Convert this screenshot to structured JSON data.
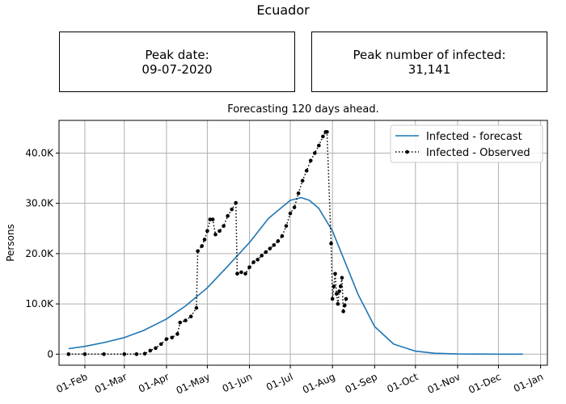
{
  "title": "Ecuador",
  "peak_date": {
    "label": "Peak date:",
    "value": "09-07-2020"
  },
  "peak_infected": {
    "label": "Peak number of infected:",
    "value": "31,141"
  },
  "subtitle": "Forecasting 120 days ahead.",
  "chart_data": {
    "type": "line",
    "title": "Forecasting 120 days ahead.",
    "xlabel": "",
    "ylabel": "Persons",
    "x_type": "date",
    "xlim": [
      "2020-01-13",
      "2021-01-06"
    ],
    "ylim": [
      -2200,
      46500
    ],
    "x_ticks": [
      {
        "date": "2020-02-01",
        "label": "01-Feb"
      },
      {
        "date": "2020-03-01",
        "label": "01-Mar"
      },
      {
        "date": "2020-04-01",
        "label": "01-Apr"
      },
      {
        "date": "2020-05-01",
        "label": "01-May"
      },
      {
        "date": "2020-06-01",
        "label": "01-Jun"
      },
      {
        "date": "2020-07-01",
        "label": "01-Jul"
      },
      {
        "date": "2020-08-01",
        "label": "01-Aug"
      },
      {
        "date": "2020-09-01",
        "label": "01-Sep"
      },
      {
        "date": "2020-10-01",
        "label": "01-Oct"
      },
      {
        "date": "2020-11-01",
        "label": "01-Nov"
      },
      {
        "date": "2020-12-01",
        "label": "01-Dec"
      },
      {
        "date": "2021-01-01",
        "label": "01-Jan"
      }
    ],
    "y_ticks": [
      {
        "value": 0,
        "label": "0"
      },
      {
        "value": 10000,
        "label": "10.0K"
      },
      {
        "value": 20000,
        "label": "20.0K"
      },
      {
        "value": 30000,
        "label": "30.0K"
      },
      {
        "value": 40000,
        "label": "40.0K"
      }
    ],
    "grid": true,
    "legend_position": "top-right",
    "colors": {
      "forecast": "#1f77b4",
      "observed": "#000000",
      "grid": "#b0b0b0"
    },
    "series": [
      {
        "name": "Infected - forecast",
        "style": "solid",
        "points": [
          [
            "2020-01-20",
            1100
          ],
          [
            "2020-02-01",
            1550
          ],
          [
            "2020-02-15",
            2300
          ],
          [
            "2020-03-01",
            3300
          ],
          [
            "2020-03-15",
            4700
          ],
          [
            "2020-04-01",
            7000
          ],
          [
            "2020-04-15",
            9600
          ],
          [
            "2020-05-01",
            13200
          ],
          [
            "2020-05-15",
            17200
          ],
          [
            "2020-06-01",
            22200
          ],
          [
            "2020-06-15",
            27000
          ],
          [
            "2020-07-01",
            30600
          ],
          [
            "2020-07-09",
            31141
          ],
          [
            "2020-07-15",
            30600
          ],
          [
            "2020-07-22",
            29000
          ],
          [
            "2020-08-01",
            24500
          ],
          [
            "2020-08-10",
            18500
          ],
          [
            "2020-08-20",
            11800
          ],
          [
            "2020-09-01",
            5500
          ],
          [
            "2020-09-15",
            2000
          ],
          [
            "2020-10-01",
            600
          ],
          [
            "2020-10-15",
            180
          ],
          [
            "2020-11-01",
            40
          ],
          [
            "2020-12-01",
            0
          ],
          [
            "2020-12-19",
            0
          ]
        ]
      },
      {
        "name": "Infected - Observed",
        "style": "dotted-marker",
        "points": [
          [
            "2020-01-20",
            0
          ],
          [
            "2020-02-01",
            0
          ],
          [
            "2020-02-15",
            0
          ],
          [
            "2020-03-01",
            0
          ],
          [
            "2020-03-10",
            0
          ],
          [
            "2020-03-16",
            100
          ],
          [
            "2020-03-20",
            700
          ],
          [
            "2020-03-24",
            1200
          ],
          [
            "2020-03-28",
            2000
          ],
          [
            "2020-04-01",
            3000
          ],
          [
            "2020-04-05",
            3300
          ],
          [
            "2020-04-09",
            4000
          ],
          [
            "2020-04-11",
            6300
          ],
          [
            "2020-04-15",
            6700
          ],
          [
            "2020-04-19",
            7500
          ],
          [
            "2020-04-23",
            9200
          ],
          [
            "2020-04-24",
            20500
          ],
          [
            "2020-04-27",
            21500
          ],
          [
            "2020-04-29",
            22800
          ],
          [
            "2020-05-01",
            24500
          ],
          [
            "2020-05-03",
            26800
          ],
          [
            "2020-05-05",
            26800
          ],
          [
            "2020-05-07",
            23800
          ],
          [
            "2020-05-10",
            24500
          ],
          [
            "2020-05-13",
            25500
          ],
          [
            "2020-05-16",
            27500
          ],
          [
            "2020-05-19",
            28800
          ],
          [
            "2020-05-22",
            30100
          ],
          [
            "2020-05-23",
            16000
          ],
          [
            "2020-05-26",
            16300
          ],
          [
            "2020-05-29",
            16000
          ],
          [
            "2020-06-01",
            17300
          ],
          [
            "2020-06-04",
            18300
          ],
          [
            "2020-06-07",
            18800
          ],
          [
            "2020-06-10",
            19600
          ],
          [
            "2020-06-13",
            20300
          ],
          [
            "2020-06-16",
            21000
          ],
          [
            "2020-06-19",
            21700
          ],
          [
            "2020-06-22",
            22500
          ],
          [
            "2020-06-25",
            23500
          ],
          [
            "2020-06-28",
            25500
          ],
          [
            "2020-07-01",
            28000
          ],
          [
            "2020-07-04",
            29200
          ],
          [
            "2020-07-07",
            32000
          ],
          [
            "2020-07-10",
            34500
          ],
          [
            "2020-07-13",
            36500
          ],
          [
            "2020-07-16",
            38500
          ],
          [
            "2020-07-19",
            40000
          ],
          [
            "2020-07-22",
            41500
          ],
          [
            "2020-07-25",
            43300
          ],
          [
            "2020-07-27",
            44200
          ],
          [
            "2020-07-28",
            44200
          ],
          [
            "2020-07-31",
            22000
          ],
          [
            "2020-08-01",
            11000
          ],
          [
            "2020-08-02",
            13500
          ],
          [
            "2020-08-03",
            16000
          ],
          [
            "2020-08-04",
            12000
          ],
          [
            "2020-08-05",
            10000
          ],
          [
            "2020-08-06",
            12500
          ],
          [
            "2020-08-07",
            13500
          ],
          [
            "2020-08-08",
            15200
          ],
          [
            "2020-08-09",
            8500
          ],
          [
            "2020-08-10",
            9700
          ],
          [
            "2020-08-11",
            11000
          ]
        ]
      }
    ]
  }
}
